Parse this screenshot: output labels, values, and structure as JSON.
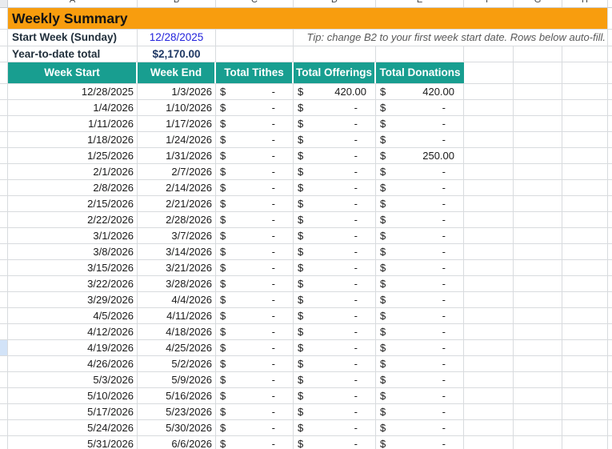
{
  "title": "Weekly Summary",
  "columns": [
    "A",
    "B",
    "C",
    "D",
    "E",
    "F",
    "G",
    "H"
  ],
  "info": {
    "start_week_label": "Start Week (Sunday)",
    "start_week_value": "12/28/2025",
    "tip": "Tip: change B2 to your first week start date. Rows below auto-fill.",
    "ytd_label": "Year-to-date total",
    "ytd_value": "$2,170.00"
  },
  "table": {
    "headers": [
      "Week Start",
      "Week End",
      "Total Tithes",
      "Total Offerings",
      "Total Donations"
    ],
    "currency_symbol": "$",
    "empty_value": "-",
    "gutter_highlight_index": 16,
    "last_row_clipped": true,
    "rows": [
      {
        "start": "12/28/2025",
        "end": "1/3/2026",
        "tithes": "-",
        "offerings": "420.00",
        "donations": "420.00"
      },
      {
        "start": "1/4/2026",
        "end": "1/10/2026",
        "tithes": "-",
        "offerings": "-",
        "donations": "-"
      },
      {
        "start": "1/11/2026",
        "end": "1/17/2026",
        "tithes": "-",
        "offerings": "-",
        "donations": "-"
      },
      {
        "start": "1/18/2026",
        "end": "1/24/2026",
        "tithes": "-",
        "offerings": "-",
        "donations": "-"
      },
      {
        "start": "1/25/2026",
        "end": "1/31/2026",
        "tithes": "-",
        "offerings": "-",
        "donations": "250.00"
      },
      {
        "start": "2/1/2026",
        "end": "2/7/2026",
        "tithes": "-",
        "offerings": "-",
        "donations": "-"
      },
      {
        "start": "2/8/2026",
        "end": "2/14/2026",
        "tithes": "-",
        "offerings": "-",
        "donations": "-"
      },
      {
        "start": "2/15/2026",
        "end": "2/21/2026",
        "tithes": "-",
        "offerings": "-",
        "donations": "-"
      },
      {
        "start": "2/22/2026",
        "end": "2/28/2026",
        "tithes": "-",
        "offerings": "-",
        "donations": "-"
      },
      {
        "start": "3/1/2026",
        "end": "3/7/2026",
        "tithes": "-",
        "offerings": "-",
        "donations": "-"
      },
      {
        "start": "3/8/2026",
        "end": "3/14/2026",
        "tithes": "-",
        "offerings": "-",
        "donations": "-"
      },
      {
        "start": "3/15/2026",
        "end": "3/21/2026",
        "tithes": "-",
        "offerings": "-",
        "donations": "-"
      },
      {
        "start": "3/22/2026",
        "end": "3/28/2026",
        "tithes": "-",
        "offerings": "-",
        "donations": "-"
      },
      {
        "start": "3/29/2026",
        "end": "4/4/2026",
        "tithes": "-",
        "offerings": "-",
        "donations": "-"
      },
      {
        "start": "4/5/2026",
        "end": "4/11/2026",
        "tithes": "-",
        "offerings": "-",
        "donations": "-"
      },
      {
        "start": "4/12/2026",
        "end": "4/18/2026",
        "tithes": "-",
        "offerings": "-",
        "donations": "-"
      },
      {
        "start": "4/19/2026",
        "end": "4/25/2026",
        "tithes": "-",
        "offerings": "-",
        "donations": "-"
      },
      {
        "start": "4/26/2026",
        "end": "5/2/2026",
        "tithes": "-",
        "offerings": "-",
        "donations": "-"
      },
      {
        "start": "5/3/2026",
        "end": "5/9/2026",
        "tithes": "-",
        "offerings": "-",
        "donations": "-"
      },
      {
        "start": "5/10/2026",
        "end": "5/16/2026",
        "tithes": "-",
        "offerings": "-",
        "donations": "-"
      },
      {
        "start": "5/17/2026",
        "end": "5/23/2026",
        "tithes": "-",
        "offerings": "-",
        "donations": "-"
      },
      {
        "start": "5/24/2026",
        "end": "5/30/2026",
        "tithes": "-",
        "offerings": "-",
        "donations": "-"
      },
      {
        "start": "5/31/2026",
        "end": "6/6/2026",
        "tithes": "-",
        "offerings": "-",
        "donations": "-"
      }
    ]
  },
  "colors": {
    "title-bg": "#F89D0E",
    "header-bg": "#189E90",
    "link-blue": "#2323DC",
    "ytd-navy": "#1F3864",
    "label-dark": "#22303C",
    "tip-gray": "#595959",
    "grid": "#D8DBDE",
    "gutter-highlight": "#D2E3F8"
  }
}
